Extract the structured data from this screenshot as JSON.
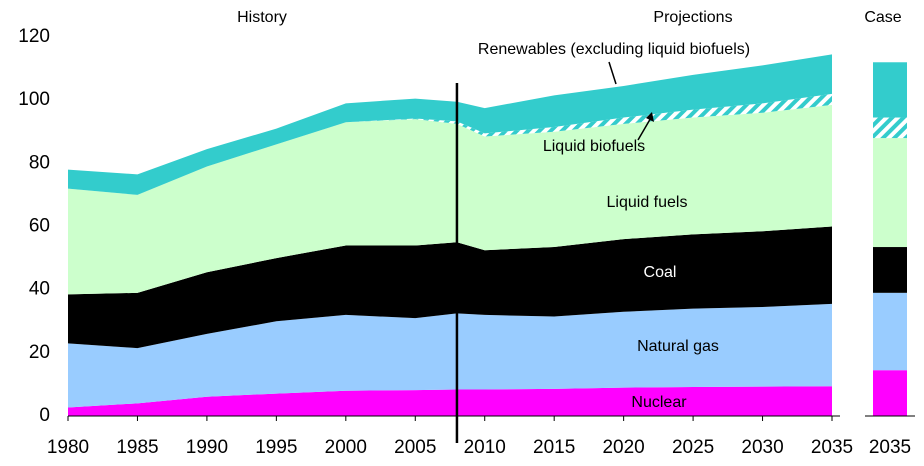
{
  "chart_data": [
    {
      "type": "stacked_area",
      "annotations": [
        "History",
        "Projections"
      ],
      "x": [
        1980,
        1985,
        1990,
        1995,
        2000,
        2005,
        2008,
        2010,
        2015,
        2020,
        2025,
        2030,
        2035
      ],
      "series": [
        {
          "name": "Nuclear",
          "color": "#ff00ff",
          "values": [
            2.7,
            4,
            6.1,
            7.1,
            8,
            8.2,
            8.4,
            8.4,
            8.6,
            9,
            9.2,
            9.3,
            9.4
          ]
        },
        {
          "name": "Natural gas",
          "color": "#99ccff",
          "values": [
            20.3,
            17.5,
            19.9,
            22.9,
            24,
            22.8,
            24.1,
            23.6,
            22.9,
            24,
            24.8,
            25.2,
            26.1
          ]
        },
        {
          "name": "Coal",
          "color": "#000000",
          "values": [
            15.5,
            17.5,
            19.5,
            20,
            22,
            23,
            22.5,
            20.5,
            22,
            23,
            23.5,
            24,
            24.5
          ]
        },
        {
          "name": "Liquid fuels",
          "color": "#ccffcc",
          "values": [
            33.5,
            31,
            33.5,
            36,
            39,
            40,
            37.5,
            36,
            36.5,
            36.5,
            37,
            37.5,
            38.5
          ]
        },
        {
          "name": "Liquid biofuels",
          "color": "#33cccc",
          "values": [
            0,
            0,
            0,
            0,
            0,
            0.2,
            0.8,
            1,
            1.5,
            2,
            2.5,
            3,
            3.5
          ]
        },
        {
          "name": "Renewables (excluding liquid biofuels)",
          "color": "#33cccc",
          "values": [
            6,
            6.5,
            5.5,
            5,
            6,
            6.3,
            6.2,
            8,
            10,
            10,
            11,
            12,
            12.5
          ]
        }
      ],
      "divider_x": 2008,
      "xlim": [
        1980,
        2035
      ],
      "xticks": [
        1980,
        1985,
        1990,
        1995,
        2000,
        2005,
        2010,
        2015,
        2020,
        2025,
        2030,
        2035
      ],
      "ylim": [
        0,
        120
      ],
      "yticks": [
        0,
        20,
        40,
        60,
        80,
        100,
        120
      ]
    },
    {
      "type": "stacked_bar",
      "title": "Case",
      "categories": [
        "2035"
      ],
      "series": [
        {
          "color": "#ff00ff",
          "values": [
            14.5
          ]
        },
        {
          "color": "#99ccff",
          "values": [
            24.5
          ]
        },
        {
          "color": "#000000",
          "values": [
            14.5
          ]
        },
        {
          "color": "#ccffcc",
          "values": [
            34.5
          ]
        },
        {
          "color": "#33cccc",
          "values": [
            6.5
          ]
        },
        {
          "color": "#33cccc",
          "values": [
            17.5
          ]
        }
      ],
      "ylim": [
        0,
        120
      ]
    }
  ]
}
